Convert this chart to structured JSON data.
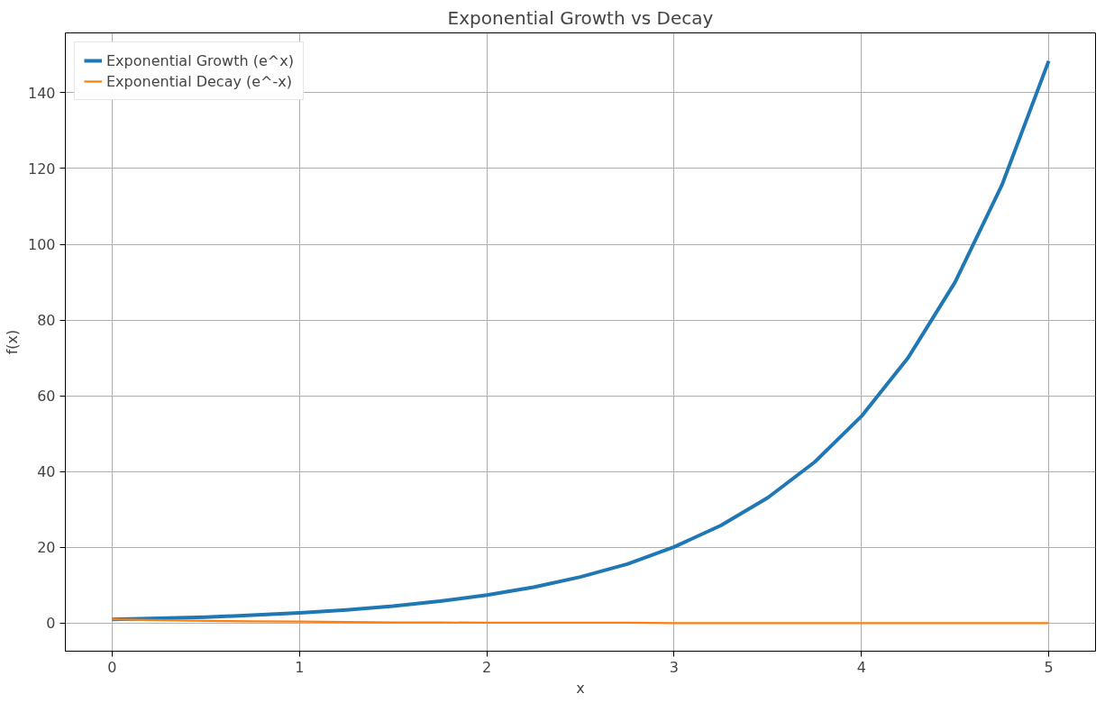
{
  "chart_data": {
    "type": "line",
    "title": "Exponential Growth vs Decay",
    "xlabel": "x",
    "ylabel": "f(x)",
    "x": [
      0,
      0.25,
      0.5,
      0.75,
      1,
      1.25,
      1.5,
      1.75,
      2,
      2.25,
      2.5,
      2.75,
      3,
      3.25,
      3.5,
      3.75,
      4,
      4.25,
      4.5,
      4.75,
      5
    ],
    "series": [
      {
        "name": "Exponential Growth (e^x)",
        "color": "#1f77b4",
        "values": [
          1,
          1.3,
          1.6,
          2.1,
          2.7,
          3.5,
          4.5,
          5.8,
          7.4,
          9.5,
          12.2,
          15.6,
          20.1,
          25.8,
          33.1,
          42.5,
          54.6,
          70.1,
          90.0,
          115.6,
          148.4
        ]
      },
      {
        "name": "Exponential Decay (e^-x)",
        "color": "#ff7f0e",
        "values": [
          1,
          0.8,
          0.6,
          0.5,
          0.4,
          0.3,
          0.2,
          0.2,
          0.1,
          0.1,
          0.1,
          0.1,
          0,
          0,
          0,
          0,
          0,
          0,
          0,
          0,
          0
        ]
      }
    ],
    "xlim": [
      -0.25,
      5.25
    ],
    "ylim": [
      -7.4,
      155.8
    ],
    "xticks": [
      0,
      1,
      2,
      3,
      4,
      5
    ],
    "yticks": [
      0,
      20,
      40,
      60,
      80,
      100,
      120,
      140
    ],
    "grid": true,
    "legend": "top left",
    "line_style": "solid",
    "marker": "none"
  }
}
